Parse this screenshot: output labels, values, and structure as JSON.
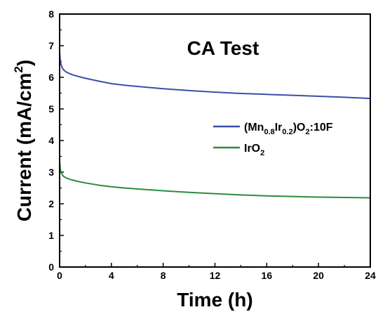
{
  "chart_data": {
    "type": "line",
    "title": "",
    "annotation": "CA Test",
    "xlabel": "Time (h)",
    "ylabel": {
      "main": "Current (mA/cm",
      "sup": "2",
      "close": ")"
    },
    "xlim": [
      0,
      24
    ],
    "ylim": [
      0,
      8
    ],
    "x_ticks": [
      0,
      4,
      8,
      12,
      16,
      20,
      24
    ],
    "y_ticks": [
      0,
      1,
      2,
      3,
      4,
      5,
      6,
      7,
      8
    ],
    "grid": false,
    "legend_position": "right",
    "series": [
      {
        "name": "(Mn0.8Ir0.2)O2:10F",
        "name_parts": {
          "p1": "(Mn",
          "s1": "0.8",
          "p2": "Ir",
          "s2": "0.2",
          "p3": ")O",
          "s3": "2",
          "p4": ":10F"
        },
        "color": "#3a4fa8",
        "x": [
          0,
          0.05,
          0.1,
          0.2,
          0.3,
          0.5,
          0.75,
          1,
          1.5,
          2,
          3,
          4,
          5,
          6,
          8,
          10,
          12,
          14,
          16,
          18,
          20,
          22,
          24
        ],
        "values": [
          6.8,
          6.55,
          6.42,
          6.3,
          6.24,
          6.17,
          6.12,
          6.08,
          6.02,
          5.97,
          5.88,
          5.8,
          5.75,
          5.71,
          5.64,
          5.58,
          5.53,
          5.49,
          5.46,
          5.43,
          5.4,
          5.37,
          5.33
        ]
      },
      {
        "name": "IrO2",
        "name_parts": {
          "p1": "IrO",
          "s1": "2"
        },
        "color": "#2e8b3e",
        "x": [
          0,
          0.05,
          0.1,
          0.2,
          0.3,
          0.5,
          0.75,
          1,
          1.5,
          2,
          3,
          4,
          5,
          6,
          8,
          10,
          12,
          14,
          16,
          18,
          20,
          22,
          24
        ],
        "values": [
          3.35,
          3.1,
          3.0,
          2.92,
          2.87,
          2.82,
          2.78,
          2.75,
          2.7,
          2.66,
          2.59,
          2.54,
          2.5,
          2.47,
          2.41,
          2.36,
          2.32,
          2.28,
          2.25,
          2.23,
          2.21,
          2.2,
          2.19
        ]
      }
    ]
  }
}
